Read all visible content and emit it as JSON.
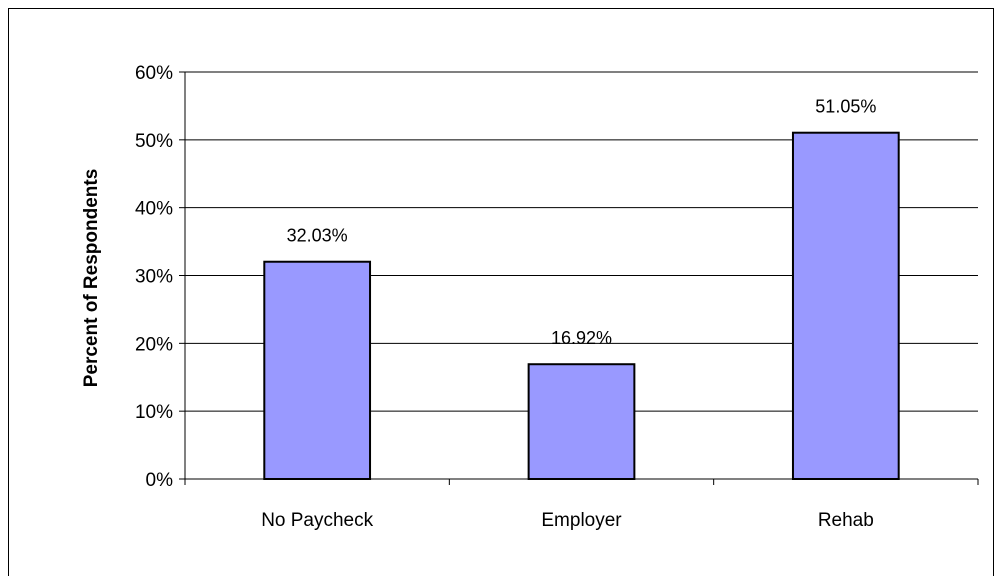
{
  "chart_data": {
    "type": "bar",
    "title": "",
    "xlabel": "",
    "ylabel": "Percent of Respondents",
    "categories": [
      "No Paycheck",
      "Employer",
      "Rehab"
    ],
    "values": [
      32.03,
      16.92,
      51.05
    ],
    "data_labels": [
      "32.03%",
      "16.92%",
      "51.05%"
    ],
    "ylim": [
      0,
      60
    ],
    "yticks": [
      0,
      10,
      20,
      30,
      40,
      50,
      60
    ],
    "ytick_labels": [
      "0%",
      "10%",
      "20%",
      "30%",
      "40%",
      "50%",
      "60%"
    ],
    "grid": true,
    "legend": "none",
    "bar_color": "#9999ff",
    "bar_edge_color": "#000000"
  }
}
